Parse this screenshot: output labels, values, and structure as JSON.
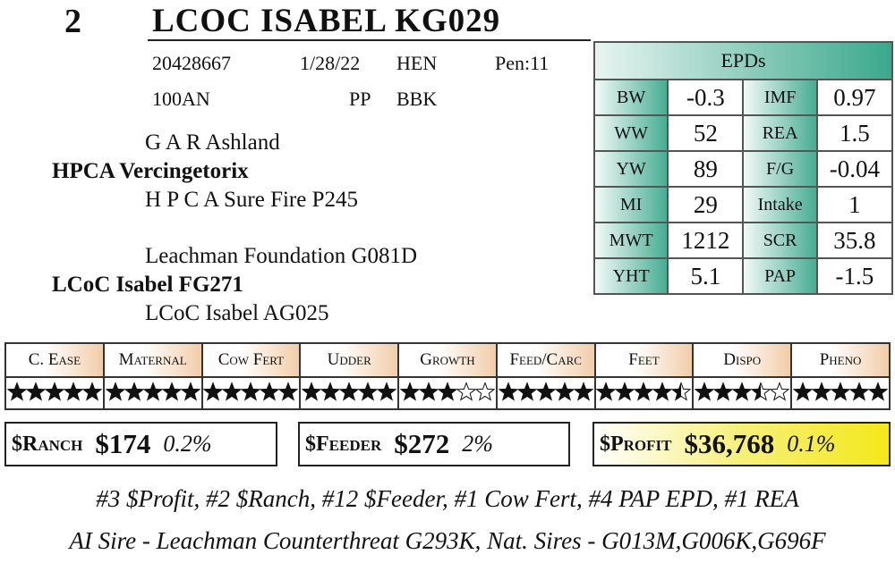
{
  "lot": "2",
  "name": "LCOC ISABEL KG029",
  "info": {
    "row1": [
      "20428667",
      "1/28/22",
      "HEN",
      "Pen:11"
    ],
    "row2": [
      "100AN",
      "PP",
      "BBK"
    ]
  },
  "pedigree": [
    "G A R Ashland",
    "HPCA Vercingetorix",
    "H P C A Sure Fire P245",
    "Leachman Foundation G081D",
    "LCoC Isabel FG271",
    "LCoC Isabel AG025"
  ],
  "epds": {
    "title": "EPDs",
    "rows": [
      [
        "BW",
        "-0.3",
        "IMF",
        "0.97"
      ],
      [
        "WW",
        "52",
        "REA",
        "1.5"
      ],
      [
        "YW",
        "89",
        "F/G",
        "-0.04"
      ],
      [
        "MI",
        "29",
        "Intake",
        "1"
      ],
      [
        "MWT",
        "1212",
        "SCR",
        "35.8"
      ],
      [
        "YHT",
        "5.1",
        "PAP",
        "-1.5"
      ]
    ]
  },
  "ratings": {
    "headers": [
      "C. Ease",
      "Maternal",
      "Cow Fert",
      "Udder",
      "Growth",
      "Feed/Carc",
      "Feet",
      "Dispo",
      "Pheno"
    ],
    "stars": [
      5,
      5,
      5,
      5,
      3,
      5,
      4.5,
      3.5,
      5
    ]
  },
  "indexes": [
    {
      "label": "$Ranch",
      "value": "$174",
      "pct": "0.2%"
    },
    {
      "label": "$Feeder",
      "value": "$272",
      "pct": "2%"
    },
    {
      "label": "$Profit",
      "value": "$36,768",
      "pct": "0.1%"
    }
  ],
  "notes": [
    "#3 $Profit, #2 $Ranch, #12 $Feeder, #1 Cow Fert, #4 PAP EPD, #1 REA",
    "AI Sire - Leachman Counterthreat G293K, Nat. Sires - G013M,G006K,G696F"
  ]
}
